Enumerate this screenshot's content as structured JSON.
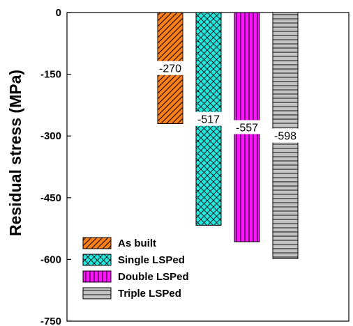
{
  "chart_data": {
    "type": "bar",
    "ylabel": "Residual stress (MPa)",
    "xlabel": "",
    "ylim": [
      -750,
      0
    ],
    "yticks": [
      0,
      -150,
      -300,
      -450,
      -600,
      -750
    ],
    "ytick_labels": [
      "0",
      "-150",
      "-300",
      "-450",
      "-600",
      "-750"
    ],
    "grid": false,
    "legend_position": "bottom-left",
    "series": [
      {
        "name": "As built",
        "value": -270,
        "label": "-270",
        "color": "#ff7f1a",
        "pattern": "diagonal-hatch"
      },
      {
        "name": "Single LSPed",
        "value": -517,
        "label": "-517",
        "color": "#22e8e0",
        "pattern": "cross-hatch"
      },
      {
        "name": "Double LSPed",
        "value": -557,
        "label": "-557",
        "color": "#ff14ff",
        "pattern": "vertical-stripes"
      },
      {
        "name": "Triple LSPed",
        "value": -598,
        "label": "-598",
        "color": "#c2c2c2",
        "pattern": "horizontal-stripes"
      }
    ]
  }
}
